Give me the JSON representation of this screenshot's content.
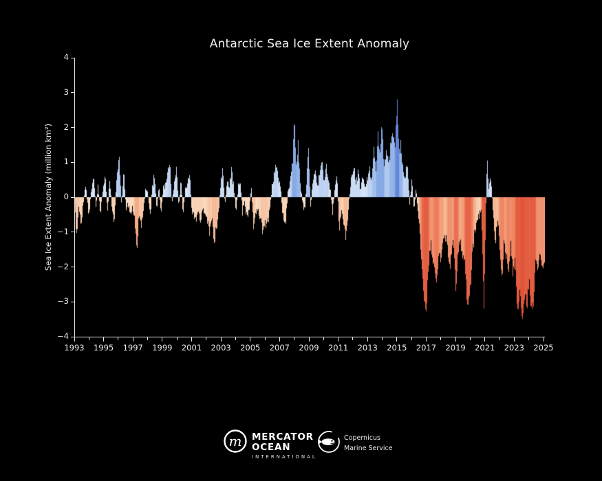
{
  "chart_data": {
    "type": "area",
    "title": "Antarctic Sea Ice Extent Anomaly",
    "ylabel": "Sea Ice Extent Anomaly (million km²)",
    "xlabel": "",
    "xlim": [
      1993,
      2025.1
    ],
    "ylim": [
      -4,
      4
    ],
    "grid": false,
    "legend": "none",
    "yticks": [
      "4",
      "3",
      "2",
      "1",
      "0",
      "−1",
      "−2",
      "−3",
      "−4"
    ],
    "ytick_values": [
      4,
      3,
      2,
      1,
      0,
      -1,
      -2,
      -3,
      -4
    ],
    "xticks_major": [
      1993,
      1995,
      1997,
      1999,
      2001,
      2003,
      2005,
      2007,
      2009,
      2011,
      2013,
      2015,
      2017,
      2019,
      2021,
      2023,
      2025
    ],
    "xticks_minor": [
      1994,
      1996,
      1998,
      2000,
      2002,
      2004,
      2006,
      2008,
      2010,
      2012,
      2014,
      2016,
      2018,
      2020,
      2022,
      2024
    ],
    "colors": {
      "background": "#000000",
      "axis": "#e8e8e8",
      "tick_label": "#eaeaea",
      "positive_scale": [
        "#edf2fb",
        "#cdddf4",
        "#a8c4ee",
        "#82a5e4",
        "#5f86d8"
      ],
      "negative_scale": [
        "#fbead9",
        "#f8d2b6",
        "#f4ad88",
        "#ef8765",
        "#e7664a",
        "#dd4f33"
      ],
      "notch": "#000000"
    },
    "positive_norm_max": 2.8,
    "negative_norm_max": 3.7,
    "series": [
      {
        "name": "sea_ice_extent_anomaly_million_km2",
        "style": "colored columns from 0 to value, shade by magnitude, black high-frequency notches",
        "points": [
          [
            1993.0,
            -0.25
          ],
          [
            1993.08,
            -0.95
          ],
          [
            1993.18,
            -1.0
          ],
          [
            1993.3,
            -0.35
          ],
          [
            1993.45,
            -0.75
          ],
          [
            1993.6,
            -0.25
          ],
          [
            1993.75,
            0.3
          ],
          [
            1993.9,
            -0.2
          ],
          [
            1994.0,
            -0.5
          ],
          [
            1994.15,
            0.2
          ],
          [
            1994.3,
            0.55
          ],
          [
            1994.45,
            -0.3
          ],
          [
            1994.6,
            0.3
          ],
          [
            1994.75,
            -0.6
          ],
          [
            1994.9,
            0.2
          ],
          [
            1995.1,
            0.57
          ],
          [
            1995.25,
            -0.4
          ],
          [
            1995.4,
            0.5
          ],
          [
            1995.55,
            -0.3
          ],
          [
            1995.7,
            -0.65
          ],
          [
            1995.85,
            0.4
          ],
          [
            1996.05,
            1.05
          ],
          [
            1996.2,
            -0.3
          ],
          [
            1996.35,
            0.75
          ],
          [
            1996.5,
            -0.4
          ],
          [
            1996.65,
            -0.2
          ],
          [
            1996.8,
            -0.5
          ],
          [
            1996.95,
            -0.3
          ],
          [
            1997.1,
            -0.6
          ],
          [
            1997.25,
            -1.4
          ],
          [
            1997.4,
            -0.5
          ],
          [
            1997.55,
            -0.9
          ],
          [
            1997.7,
            -0.35
          ],
          [
            1997.85,
            0.25
          ],
          [
            1998.0,
            0.2
          ],
          [
            1998.15,
            -0.55
          ],
          [
            1998.3,
            0.3
          ],
          [
            1998.45,
            0.65
          ],
          [
            1998.6,
            -0.35
          ],
          [
            1998.75,
            0.3
          ],
          [
            1998.9,
            -0.45
          ],
          [
            1999.05,
            0.3
          ],
          [
            1999.2,
            0.45
          ],
          [
            1999.35,
            0.7
          ],
          [
            1999.5,
            0.95
          ],
          [
            1999.65,
            -0.3
          ],
          [
            1999.8,
            0.5
          ],
          [
            1999.95,
            0.85
          ],
          [
            2000.1,
            -0.3
          ],
          [
            2000.25,
            0.5
          ],
          [
            2000.4,
            -0.45
          ],
          [
            2000.55,
            0.2
          ],
          [
            2000.7,
            0.4
          ],
          [
            2000.85,
            0.65
          ],
          [
            2001.0,
            -0.35
          ],
          [
            2001.15,
            -0.5
          ],
          [
            2001.3,
            -0.76
          ],
          [
            2001.45,
            -0.3
          ],
          [
            2001.6,
            -0.7
          ],
          [
            2001.75,
            -0.25
          ],
          [
            2001.9,
            -0.45
          ],
          [
            2002.05,
            -0.6
          ],
          [
            2002.2,
            -1.0
          ],
          [
            2002.35,
            -0.6
          ],
          [
            2002.55,
            -1.45
          ],
          [
            2002.7,
            -0.9
          ],
          [
            2002.85,
            -0.3
          ],
          [
            2003.0,
            0.45
          ],
          [
            2003.1,
            0.75
          ],
          [
            2003.25,
            -0.2
          ],
          [
            2003.4,
            0.4
          ],
          [
            2003.55,
            0.3
          ],
          [
            2003.7,
            0.8
          ],
          [
            2003.85,
            0.45
          ],
          [
            2004.0,
            -0.4
          ],
          [
            2004.15,
            0.3
          ],
          [
            2004.3,
            0.55
          ],
          [
            2004.45,
            -0.5
          ],
          [
            2004.6,
            -0.2
          ],
          [
            2004.75,
            -0.6
          ],
          [
            2004.9,
            -0.35
          ],
          [
            2005.05,
            0.3
          ],
          [
            2005.2,
            -0.85
          ],
          [
            2005.35,
            -0.45
          ],
          [
            2005.5,
            -0.3
          ],
          [
            2005.65,
            -0.55
          ],
          [
            2005.85,
            -1.0
          ],
          [
            2006.0,
            -0.85
          ],
          [
            2006.15,
            -0.95
          ],
          [
            2006.3,
            -0.4
          ],
          [
            2006.45,
            0.3
          ],
          [
            2006.6,
            0.55
          ],
          [
            2006.75,
            0.9
          ],
          [
            2006.9,
            0.45
          ],
          [
            2007.05,
            0.3
          ],
          [
            2007.2,
            -0.5
          ],
          [
            2007.4,
            -0.65
          ],
          [
            2007.55,
            0.2
          ],
          [
            2007.7,
            0.45
          ],
          [
            2007.85,
            0.9
          ],
          [
            2008.0,
            2.3
          ],
          [
            2008.12,
            0.8
          ],
          [
            2008.25,
            1.55
          ],
          [
            2008.4,
            0.35
          ],
          [
            2008.55,
            -0.2
          ],
          [
            2008.7,
            -0.4
          ],
          [
            2008.85,
            0.6
          ],
          [
            2008.95,
            1.25
          ],
          [
            2009.1,
            -0.3
          ],
          [
            2009.25,
            0.55
          ],
          [
            2009.4,
            0.9
          ],
          [
            2009.55,
            0.4
          ],
          [
            2009.7,
            0.7
          ],
          [
            2009.85,
            1.1
          ],
          [
            2010.0,
            0.5
          ],
          [
            2010.15,
            0.9
          ],
          [
            2010.3,
            0.45
          ],
          [
            2010.45,
            0.2
          ],
          [
            2010.6,
            -0.4
          ],
          [
            2010.75,
            0.3
          ],
          [
            2010.9,
            0.6
          ],
          [
            2011.05,
            -1.05
          ],
          [
            2011.2,
            -0.55
          ],
          [
            2011.35,
            -0.7
          ],
          [
            2011.5,
            -1.1
          ],
          [
            2011.65,
            -0.45
          ],
          [
            2011.8,
            0.3
          ],
          [
            2011.95,
            0.8
          ],
          [
            2012.05,
            1.0
          ],
          [
            2012.2,
            0.4
          ],
          [
            2012.35,
            0.8
          ],
          [
            2012.5,
            0.25
          ],
          [
            2012.65,
            0.7
          ],
          [
            2012.8,
            0.35
          ],
          [
            2012.95,
            0.55
          ],
          [
            2013.1,
            0.9
          ],
          [
            2013.25,
            0.6
          ],
          [
            2013.4,
            1.3
          ],
          [
            2013.55,
            0.8
          ],
          [
            2013.7,
            1.6
          ],
          [
            2013.85,
            1.1
          ],
          [
            2013.95,
            2.1
          ],
          [
            2014.1,
            1.0
          ],
          [
            2014.25,
            1.5
          ],
          [
            2014.4,
            1.2
          ],
          [
            2014.55,
            1.45
          ],
          [
            2014.7,
            1.9
          ],
          [
            2014.85,
            1.3
          ],
          [
            2015.0,
            2.75
          ],
          [
            2015.12,
            1.2
          ],
          [
            2015.25,
            1.7
          ],
          [
            2015.4,
            0.9
          ],
          [
            2015.55,
            0.6
          ],
          [
            2015.7,
            0.95
          ],
          [
            2015.85,
            -0.2
          ],
          [
            2016.0,
            0.45
          ],
          [
            2016.15,
            -0.3
          ],
          [
            2016.3,
            0.3
          ],
          [
            2016.45,
            -0.6
          ],
          [
            2016.6,
            -1.5
          ],
          [
            2016.75,
            -2.3
          ],
          [
            2016.95,
            -3.4
          ],
          [
            2017.1,
            -2.2
          ],
          [
            2017.25,
            -1.3
          ],
          [
            2017.4,
            -1.8
          ],
          [
            2017.55,
            -2.0
          ],
          [
            2017.7,
            -2.4
          ],
          [
            2017.85,
            -1.6
          ],
          [
            2018.0,
            -1.9
          ],
          [
            2018.15,
            -1.1
          ],
          [
            2018.3,
            -1.4
          ],
          [
            2018.45,
            -1.5
          ],
          [
            2018.6,
            -2.0
          ],
          [
            2018.75,
            -1.3
          ],
          [
            2018.9,
            -1.7
          ],
          [
            2019.0,
            -2.8
          ],
          [
            2019.15,
            -1.6
          ],
          [
            2019.3,
            -1.2
          ],
          [
            2019.45,
            -1.5
          ],
          [
            2019.6,
            -1.8
          ],
          [
            2019.8,
            -3.2
          ],
          [
            2020.0,
            -2.6
          ],
          [
            2020.15,
            -1.4
          ],
          [
            2020.3,
            -1.0
          ],
          [
            2020.45,
            -0.7
          ],
          [
            2020.6,
            -0.5
          ],
          [
            2020.75,
            -0.35
          ],
          [
            2020.92,
            -3.1
          ],
          [
            2021.05,
            -0.4
          ],
          [
            2021.12,
            1.05
          ],
          [
            2021.25,
            0.3
          ],
          [
            2021.4,
            0.6
          ],
          [
            2021.55,
            -0.5
          ],
          [
            2021.7,
            -1.3
          ],
          [
            2021.85,
            -0.8
          ],
          [
            2022.0,
            -1.5
          ],
          [
            2022.15,
            -2.4
          ],
          [
            2022.3,
            -1.2
          ],
          [
            2022.45,
            -1.6
          ],
          [
            2022.6,
            -2.1
          ],
          [
            2022.75,
            -1.4
          ],
          [
            2022.9,
            -2.3
          ],
          [
            2023.05,
            -1.8
          ],
          [
            2023.2,
            -3.5
          ],
          [
            2023.35,
            -2.6
          ],
          [
            2023.55,
            -3.6
          ],
          [
            2023.7,
            -2.9
          ],
          [
            2023.85,
            -3.2
          ],
          [
            2024.0,
            -2.4
          ],
          [
            2024.15,
            -3.3
          ],
          [
            2024.3,
            -3.0
          ],
          [
            2024.45,
            -1.8
          ],
          [
            2024.6,
            -2.2
          ],
          [
            2024.75,
            -1.6
          ],
          [
            2024.9,
            -2.0
          ],
          [
            2025.05,
            -1.9
          ]
        ]
      }
    ]
  },
  "footer": {
    "mercator": {
      "monogram": "m",
      "line1": "MERCATOR",
      "line2": "OCEAN",
      "line3": "INTERNATIONAL"
    },
    "copernicus": {
      "line1": "Copernicus",
      "line2": "Marine Service"
    }
  }
}
